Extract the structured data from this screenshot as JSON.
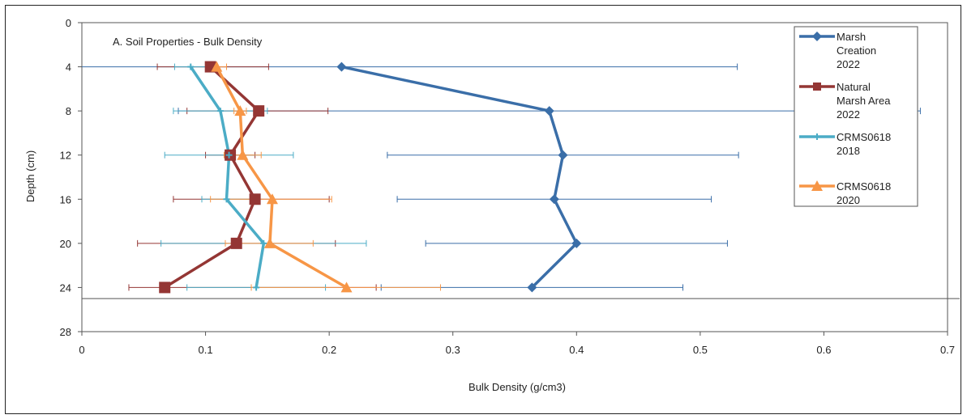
{
  "chart_data": {
    "type": "line",
    "title": "A. Soil Properties - Bulk Density",
    "xlabel": "Bulk Density (g/cm3)",
    "ylabel": "Depth (cm)",
    "xlim": [
      0,
      0.7
    ],
    "ylim": [
      0,
      28
    ],
    "y_inverted": true,
    "x_ticks": [
      "0",
      "0.1",
      "0.2",
      "0.3",
      "0.4",
      "0.5",
      "0.6",
      "0.7"
    ],
    "y_ticks": [
      "0",
      "4",
      "8",
      "12",
      "16",
      "20",
      "24",
      "28"
    ],
    "reference_line_y": 25,
    "legend_position": "top-right",
    "grid": false,
    "series": [
      {
        "name": [
          "Marsh",
          "Creation",
          "2022"
        ],
        "color": "#3a6ea8",
        "marker": "diamond",
        "points": [
          {
            "x": 0.21,
            "y": 4,
            "err_lo": 0.32,
            "err_hi": 0.32
          },
          {
            "x": 0.378,
            "y": 8,
            "err_lo": 0.3,
            "err_hi": 0.3
          },
          {
            "x": 0.389,
            "y": 12,
            "err_lo": 0.142,
            "err_hi": 0.142
          },
          {
            "x": 0.382,
            "y": 16,
            "err_lo": 0.127,
            "err_hi": 0.127
          },
          {
            "x": 0.4,
            "y": 20,
            "err_lo": 0.122,
            "err_hi": 0.122
          },
          {
            "x": 0.364,
            "y": 24,
            "err_lo": 0.122,
            "err_hi": 0.122
          }
        ]
      },
      {
        "name": [
          "Natural",
          "Marsh Area",
          "2022"
        ],
        "color": "#943634",
        "marker": "square",
        "points": [
          {
            "x": 0.104,
            "y": 4,
            "err_lo": 0.043,
            "err_hi": 0.047
          },
          {
            "x": 0.143,
            "y": 8,
            "err_lo": 0.058,
            "err_hi": 0.056
          },
          {
            "x": 0.12,
            "y": 12,
            "err_lo": 0.02,
            "err_hi": 0.02
          },
          {
            "x": 0.14,
            "y": 16,
            "err_lo": 0.066,
            "err_hi": 0.06
          },
          {
            "x": 0.125,
            "y": 20,
            "err_lo": 0.08,
            "err_hi": 0.08
          },
          {
            "x": 0.067,
            "y": 24,
            "err_lo": 0.029,
            "err_hi": 0.171
          }
        ]
      },
      {
        "name": [
          "CRMS0618",
          "2018"
        ],
        "color": "#4bacc6",
        "marker": "cross",
        "points": [
          {
            "x": 0.088,
            "y": 4,
            "err_lo": 0.013,
            "err_hi": 0.013
          },
          {
            "x": 0.112,
            "y": 8,
            "err_lo": 0.038,
            "err_hi": 0.038
          },
          {
            "x": 0.119,
            "y": 12,
            "err_lo": 0.052,
            "err_hi": 0.052
          },
          {
            "x": 0.117,
            "y": 16,
            "err_lo": 0.02,
            "err_hi": 0.02
          },
          {
            "x": 0.147,
            "y": 20,
            "err_lo": 0.083,
            "err_hi": 0.083
          },
          {
            "x": 0.141,
            "y": 24,
            "err_lo": 0.056,
            "err_hi": 0.056
          }
        ]
      },
      {
        "name": [
          "CRMS0618",
          "2020"
        ],
        "color": "#f79646",
        "marker": "triangle",
        "points": [
          {
            "x": 0.109,
            "y": 4,
            "err_lo": 0.008,
            "err_hi": 0.008
          },
          {
            "x": 0.128,
            "y": 8,
            "err_lo": 0.005,
            "err_hi": 0.005
          },
          {
            "x": 0.13,
            "y": 12,
            "err_lo": 0.015,
            "err_hi": 0.015
          },
          {
            "x": 0.154,
            "y": 16,
            "err_lo": 0.05,
            "err_hi": 0.048
          },
          {
            "x": 0.152,
            "y": 20,
            "err_lo": 0.036,
            "err_hi": 0.035
          },
          {
            "x": 0.214,
            "y": 24,
            "err_lo": 0.077,
            "err_hi": 0.076
          }
        ]
      }
    ]
  }
}
